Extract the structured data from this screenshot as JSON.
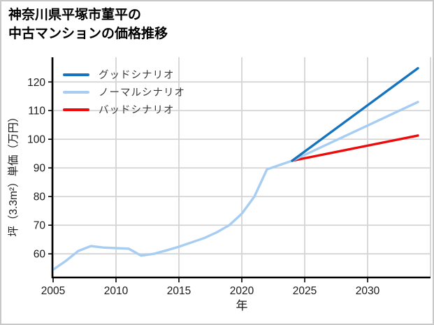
{
  "window": {
    "background": "#ffffff",
    "border_color": "#c8c8c8"
  },
  "title": {
    "line1": "神奈川県平塚市菫平の",
    "line2": "中古マンションの価格推移"
  },
  "chart_data": {
    "type": "line",
    "title": "神奈川県平塚市菫平の中古マンションの価格推移",
    "xlabel": "年",
    "ylabel": "坪（3.3m²）単価（万円）",
    "x_ticks": [
      2005,
      2010,
      2015,
      2020,
      2025,
      2030
    ],
    "y_ticks": [
      60,
      70,
      80,
      90,
      100,
      110,
      120
    ],
    "xlim": [
      2005,
      2035
    ],
    "ylim": [
      52,
      128.6
    ],
    "grid": true,
    "grid_color": "#d4d4d4",
    "axis_color": "#000000",
    "tick_label_color": "#1a1a1a",
    "legend_position": "top-left",
    "series": [
      {
        "name": "グッドシナリオ",
        "color": "#1574bd",
        "x": [
          2024,
          2034
        ],
        "values": [
          92.5,
          124.8
        ]
      },
      {
        "name": "ノーマルシナリオ",
        "color": "#a7cdf2",
        "x": [
          2005,
          2006,
          2007,
          2008,
          2009,
          2010,
          2011,
          2012,
          2013,
          2014,
          2015,
          2016,
          2017,
          2018,
          2019,
          2020,
          2021,
          2022,
          2023,
          2024,
          2034
        ],
        "values": [
          54.5,
          57.5,
          61,
          62.7,
          62.2,
          62,
          61.8,
          59.4,
          60,
          61.2,
          62.5,
          64,
          65.5,
          67.5,
          70,
          74,
          80,
          89.5,
          91,
          92.5,
          113
        ]
      },
      {
        "name": "バッドシナリオ",
        "color": "#ee0a0a",
        "x": [
          2024,
          2034
        ],
        "values": [
          92.5,
          101.3
        ]
      }
    ]
  }
}
